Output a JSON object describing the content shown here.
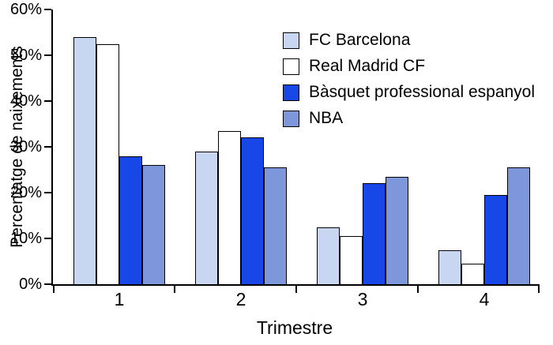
{
  "chart_data": {
    "type": "bar",
    "title": "",
    "xlabel": "Trimestre",
    "ylabel": "Percentatge de naixements",
    "categories": [
      "1",
      "2",
      "3",
      "4"
    ],
    "series": [
      {
        "name": "FC Barcelona",
        "color": "#c9d6f1",
        "values": [
          54,
          29,
          12.5,
          7.5
        ]
      },
      {
        "name": "Real Madrid CF",
        "color": "#ffffff",
        "values": [
          52.5,
          33.5,
          10.5,
          4.5
        ]
      },
      {
        "name": "Bàsquet professional espanyol",
        "color": "#1747e6",
        "values": [
          28,
          32,
          22,
          19.5
        ]
      },
      {
        "name": "NBA",
        "color": "#7e97db",
        "values": [
          26,
          25.5,
          23.5,
          25.5
        ]
      }
    ],
    "ylim": [
      0,
      60
    ],
    "ytick_step": 10,
    "ytick_suffix": "%",
    "values_unit": "%",
    "grid": false,
    "legend_position": "upper-center-right",
    "bar_border_color": "#000000",
    "axis_color": "#000000",
    "background_color": "#ffffff"
  }
}
